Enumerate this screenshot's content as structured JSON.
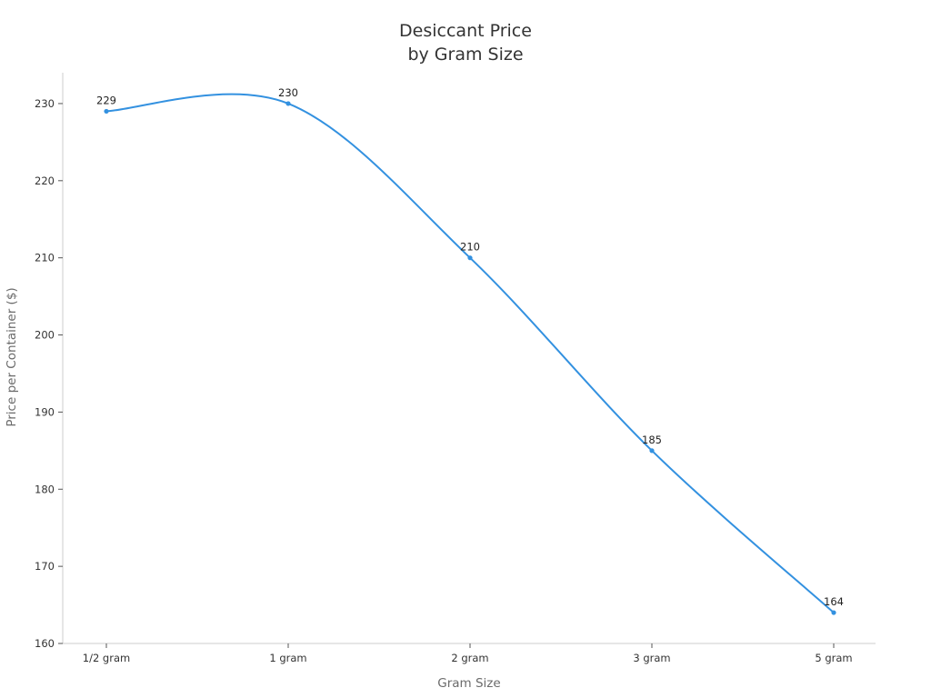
{
  "chart_data": {
    "type": "line",
    "title_lines": [
      "Desiccant Price",
      "by Gram Size"
    ],
    "xlabel": "Gram Size",
    "ylabel": "Price per Container ($)",
    "categories": [
      "1/2 gram",
      "1 gram",
      "2 gram",
      "3 gram",
      "5 gram"
    ],
    "series": [
      {
        "values": [
          229,
          230,
          210,
          185,
          164
        ],
        "data_labels": [
          "229",
          "230",
          "210",
          "185",
          "164"
        ]
      }
    ],
    "ylim": [
      160,
      234
    ],
    "yticks": [
      160,
      170,
      180,
      190,
      200,
      210,
      220,
      230
    ],
    "ytick_labels": [
      "160",
      "170",
      "180",
      "190",
      "200",
      "210",
      "220",
      "230"
    ],
    "grid": false,
    "curve": "smooth",
    "colors": {
      "line": "#3391e0",
      "axis": "#cccccc"
    }
  }
}
